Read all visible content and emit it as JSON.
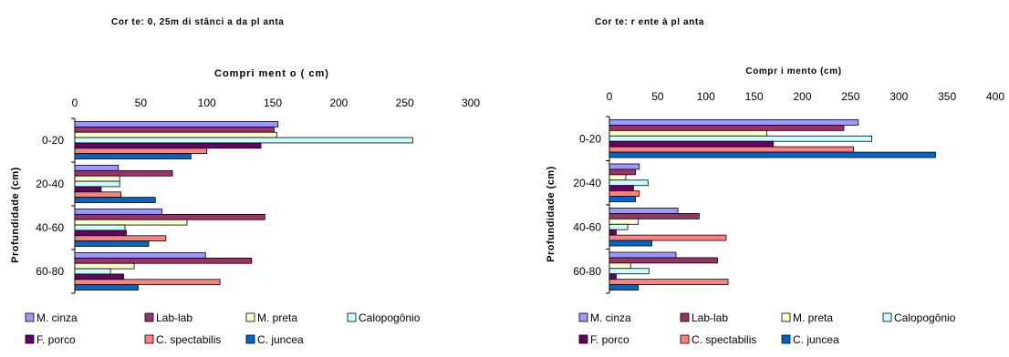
{
  "chart_data": [
    {
      "type": "bar",
      "orientation": "horizontal",
      "title": "Cor te: 0, 25m di stânci a da pl anta",
      "xlabel": "Compri ment o ( cm)",
      "ylabel": "Profundidade (cm)",
      "xlim": [
        0,
        300
      ],
      "xticks": [
        "0",
        "50",
        "100",
        "150",
        "200",
        "250",
        "300"
      ],
      "categories": [
        "0-20",
        "20-40",
        "40-60",
        "60-80"
      ],
      "series": [
        {
          "name": "M. cinza",
          "color": "#9999ff",
          "values": [
            154,
            33,
            66,
            99
          ]
        },
        {
          "name": "Lab-lab",
          "color": "#993366",
          "values": [
            151,
            74,
            144,
            134
          ]
        },
        {
          "name": "M. preta",
          "color": "#ffffcc",
          "values": [
            153,
            34,
            85,
            45
          ]
        },
        {
          "name": "Calopogônio",
          "color": "#ccffff",
          "values": [
            256,
            34,
            38,
            27
          ]
        },
        {
          "name": "F. porco",
          "color": "#660066",
          "values": [
            141,
            20,
            39,
            37
          ]
        },
        {
          "name": "C. spectabilis",
          "color": "#ff8080",
          "values": [
            100,
            35,
            69,
            110
          ]
        },
        {
          "name": "C. juncea",
          "color": "#0066cc",
          "values": [
            88,
            61,
            56,
            48
          ]
        }
      ]
    },
    {
      "type": "bar",
      "orientation": "horizontal",
      "title": "Cor te: r ente à pl anta",
      "xlabel": "Compr i mento (cm)",
      "ylabel": "Profundidade (cm)",
      "xlim": [
        0,
        400
      ],
      "xticks": [
        "0",
        "50",
        "100",
        "150",
        "200",
        "250",
        "300",
        "350",
        "400"
      ],
      "categories": [
        "0-20",
        "20-40",
        "40-60",
        "60-80"
      ],
      "series": [
        {
          "name": "M. cinza",
          "color": "#9999ff",
          "values": [
            258,
            31,
            71,
            69
          ]
        },
        {
          "name": "Lab-lab",
          "color": "#993366",
          "values": [
            243,
            27,
            93,
            112
          ]
        },
        {
          "name": "M. preta",
          "color": "#ffffcc",
          "values": [
            163,
            17,
            30,
            22
          ]
        },
        {
          "name": "Calopogônio",
          "color": "#ccffff",
          "values": [
            272,
            40,
            19,
            41
          ]
        },
        {
          "name": "F. porco",
          "color": "#660066",
          "values": [
            170,
            25,
            7,
            7
          ]
        },
        {
          "name": "C. spectabilis",
          "color": "#ff8080",
          "values": [
            253,
            31,
            121,
            123
          ]
        },
        {
          "name": "C. juncea",
          "color": "#0066cc",
          "values": [
            338,
            27,
            44,
            30
          ]
        }
      ]
    }
  ]
}
